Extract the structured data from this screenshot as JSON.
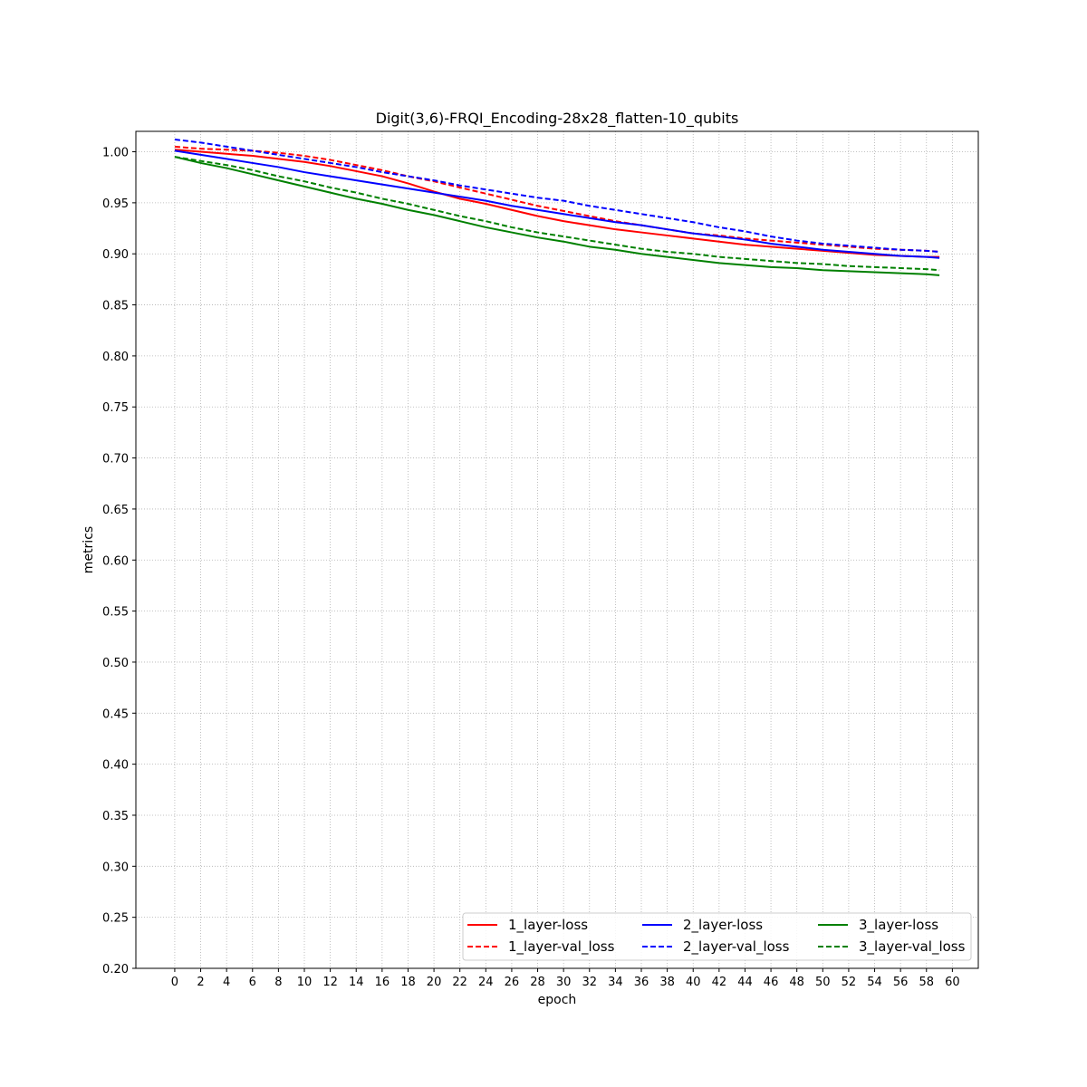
{
  "chart_data": {
    "type": "line",
    "title": "Digit(3,6)-FRQI_Encoding-28x28_flatten-10_qubits",
    "xlabel": "epoch",
    "ylabel": "metrics",
    "xlim": [
      -3,
      62
    ],
    "ylim": [
      0.2,
      1.02
    ],
    "x_ticks": [
      0,
      2,
      4,
      6,
      8,
      10,
      12,
      14,
      16,
      18,
      20,
      22,
      24,
      26,
      28,
      30,
      32,
      34,
      36,
      38,
      40,
      42,
      44,
      46,
      48,
      50,
      52,
      54,
      56,
      58,
      60
    ],
    "y_ticks": [
      0.2,
      0.25,
      0.3,
      0.35,
      0.4,
      0.45,
      0.5,
      0.55,
      0.6,
      0.65,
      0.7,
      0.75,
      0.8,
      0.85,
      0.9,
      0.95,
      1.0
    ],
    "y_tick_labels": [
      "0.20",
      "0.25",
      "0.30",
      "0.35",
      "0.40",
      "0.45",
      "0.50",
      "0.55",
      "0.60",
      "0.65",
      "0.70",
      "0.75",
      "0.80",
      "0.85",
      "0.90",
      "0.95",
      "1.00"
    ],
    "grid": true,
    "legend_position": "lower-right",
    "legend_columns": 3,
    "x": [
      0,
      2,
      4,
      6,
      8,
      10,
      12,
      14,
      16,
      18,
      20,
      22,
      24,
      26,
      28,
      30,
      32,
      34,
      36,
      38,
      40,
      42,
      44,
      46,
      48,
      50,
      52,
      54,
      56,
      58,
      59
    ],
    "series": [
      {
        "name": "1_layer-loss",
        "color": "#ff0000",
        "dash": "solid",
        "values": [
          1.002,
          1.0,
          0.998,
          0.996,
          0.993,
          0.99,
          0.986,
          0.981,
          0.976,
          0.969,
          0.961,
          0.954,
          0.949,
          0.943,
          0.937,
          0.932,
          0.928,
          0.924,
          0.921,
          0.918,
          0.915,
          0.912,
          0.909,
          0.907,
          0.905,
          0.903,
          0.901,
          0.899,
          0.898,
          0.897,
          0.897
        ]
      },
      {
        "name": "1_layer-val_loss",
        "color": "#ff0000",
        "dash": "dashed",
        "values": [
          1.005,
          1.003,
          1.002,
          1.001,
          0.999,
          0.996,
          0.992,
          0.987,
          0.982,
          0.976,
          0.971,
          0.965,
          0.959,
          0.953,
          0.947,
          0.942,
          0.937,
          0.932,
          0.928,
          0.924,
          0.92,
          0.918,
          0.915,
          0.913,
          0.911,
          0.909,
          0.907,
          0.905,
          0.904,
          0.903,
          0.902
        ]
      },
      {
        "name": "2_layer-loss",
        "color": "#0000ff",
        "dash": "solid",
        "values": [
          1.001,
          0.997,
          0.993,
          0.989,
          0.985,
          0.98,
          0.976,
          0.972,
          0.968,
          0.964,
          0.96,
          0.956,
          0.952,
          0.947,
          0.943,
          0.939,
          0.935,
          0.931,
          0.928,
          0.924,
          0.92,
          0.917,
          0.914,
          0.91,
          0.907,
          0.904,
          0.902,
          0.9,
          0.898,
          0.897,
          0.896
        ]
      },
      {
        "name": "2_layer-val_loss",
        "color": "#0000ff",
        "dash": "dashed",
        "values": [
          1.012,
          1.009,
          1.005,
          1.001,
          0.997,
          0.993,
          0.989,
          0.985,
          0.98,
          0.976,
          0.972,
          0.967,
          0.963,
          0.959,
          0.955,
          0.952,
          0.947,
          0.943,
          0.939,
          0.935,
          0.931,
          0.926,
          0.922,
          0.917,
          0.913,
          0.91,
          0.908,
          0.906,
          0.904,
          0.903,
          0.902
        ]
      },
      {
        "name": "3_layer-loss",
        "color": "#008000",
        "dash": "solid",
        "values": [
          0.995,
          0.989,
          0.984,
          0.978,
          0.972,
          0.966,
          0.96,
          0.954,
          0.949,
          0.943,
          0.938,
          0.932,
          0.926,
          0.921,
          0.916,
          0.912,
          0.907,
          0.904,
          0.9,
          0.897,
          0.894,
          0.891,
          0.889,
          0.887,
          0.886,
          0.884,
          0.883,
          0.882,
          0.881,
          0.88,
          0.879
        ]
      },
      {
        "name": "3_layer-val_loss",
        "color": "#008000",
        "dash": "dashed",
        "values": [
          0.995,
          0.991,
          0.987,
          0.982,
          0.976,
          0.971,
          0.965,
          0.96,
          0.954,
          0.949,
          0.943,
          0.937,
          0.932,
          0.926,
          0.921,
          0.917,
          0.913,
          0.909,
          0.905,
          0.902,
          0.9,
          0.897,
          0.895,
          0.893,
          0.891,
          0.89,
          0.888,
          0.887,
          0.886,
          0.885,
          0.884
        ]
      }
    ]
  }
}
